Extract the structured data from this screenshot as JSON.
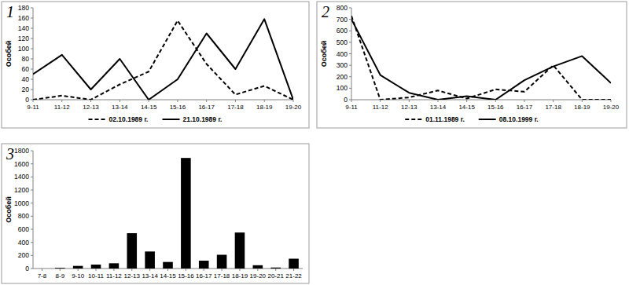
{
  "chart_data": [
    {
      "type": "line",
      "title": "1",
      "y_label": "Особей",
      "categories": [
        "9-11",
        "11-12",
        "12-13",
        "13-14",
        "14-15",
        "15-16",
        "16-17",
        "17-18",
        "18-19",
        "19-20"
      ],
      "series": [
        {
          "name": "02.10.1989 г.",
          "color": "#000000",
          "line_style": "dashed",
          "values": [
            0,
            8,
            0,
            30,
            55,
            155,
            70,
            10,
            27,
            0
          ]
        },
        {
          "name": "21.10.1989 г.",
          "color": "#000000",
          "line_style": "solid",
          "values": [
            50,
            88,
            20,
            80,
            0,
            40,
            130,
            60,
            158,
            0
          ]
        }
      ],
      "ylim": [
        0,
        180
      ],
      "yticks": [
        0,
        20,
        40,
        60,
        80,
        100,
        120,
        140,
        160,
        180
      ],
      "grid": false,
      "legend": "bottom"
    },
    {
      "type": "line",
      "title": "2",
      "y_label": "Особей",
      "categories": [
        "9-11",
        "11-12",
        "12-13",
        "13-14",
        "14-15",
        "15-16",
        "16-17",
        "17-18",
        "18-19",
        "19-20"
      ],
      "series": [
        {
          "name": "01.11.1989 г.",
          "color": "#000000",
          "line_style": "dashed",
          "values": [
            730,
            0,
            20,
            80,
            10,
            90,
            70,
            300,
            0,
            0
          ]
        },
        {
          "name": "08.10.1999 г.",
          "color": "#000000",
          "line_style": "solid",
          "values": [
            700,
            215,
            60,
            0,
            30,
            0,
            170,
            290,
            380,
            145
          ]
        }
      ],
      "ylim": [
        0,
        800
      ],
      "yticks": [
        0,
        100,
        200,
        300,
        400,
        500,
        600,
        700,
        800
      ],
      "grid": false,
      "legend": "bottom"
    },
    {
      "type": "bar",
      "title": "3",
      "y_label": "Особей",
      "categories": [
        "7-8",
        "8-9",
        "9-10",
        "10-11",
        "11-12",
        "12-13",
        "13-14",
        "14-15",
        "15-16",
        "16-17",
        "17-18",
        "18-19",
        "19-20",
        "20-21",
        "21-22"
      ],
      "values": [
        0,
        10,
        40,
        60,
        80,
        540,
        260,
        100,
        1690,
        120,
        210,
        550,
        50,
        15,
        150
      ],
      "color": "#000000",
      "ylim": [
        0,
        1800
      ],
      "yticks": [
        0,
        200,
        400,
        600,
        800,
        1000,
        1200,
        1400,
        1600,
        1800
      ],
      "grid": false
    }
  ]
}
